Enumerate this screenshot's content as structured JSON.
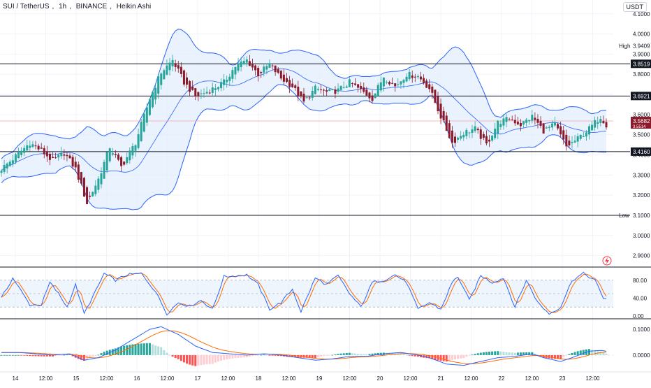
{
  "title": {
    "symbol": "SUI / TetherUS",
    "interval": "1h",
    "exchange": "BINANCE",
    "style": "Heikin Ashi"
  },
  "currency_button": "USDT",
  "colors": {
    "up": "#26a69a",
    "down": "#8b1a2b",
    "band": "#2962ff",
    "band_fill": "#e3effc",
    "stoch_k": "#2962ff",
    "stoch_d": "#ff6d00",
    "macd_line": "#2962ff",
    "signal_line": "#ff6d00",
    "hist_up_strong": "#26a69a",
    "hist_up_weak": "#b2dfdb",
    "hist_down_strong": "#ff5252",
    "hist_down_weak": "#ffcdd2",
    "current_price_bg": "#8b1a2b",
    "level_bg": "#131722"
  },
  "price_axis": {
    "ticks": [
      "4.1000",
      "4.0000",
      "3.9000",
      "3.8000",
      "3.7000",
      "3.6000",
      "3.5000",
      "3.4000",
      "3.3000",
      "3.2000",
      "3.1000",
      "3.0000",
      "2.9000"
    ]
  },
  "levels": [
    {
      "label": "",
      "value": "3.8519",
      "price": 3.8519
    },
    {
      "label": "",
      "value": "3.6921",
      "price": 3.6921
    },
    {
      "label": "",
      "value": "3.4160",
      "price": 3.416
    },
    {
      "label": "Low",
      "value": "3.1000",
      "price": 3.1
    }
  ],
  "high_marker": {
    "label": "High",
    "value": "3.9409",
    "price": 3.9409
  },
  "current_price": {
    "value": "3.5682",
    "sub": "3.5514",
    "price": 3.5682
  },
  "time_axis": [
    "14",
    "12:00",
    "15",
    "12:00",
    "16",
    "12:00",
    "17",
    "12:00",
    "18",
    "12:00",
    "19",
    "12:00",
    "20",
    "12:00",
    "21",
    "12:00",
    "22",
    "12:00",
    "23",
    "12:00"
  ],
  "stoch_axis": [
    "80.00",
    "40.00",
    "0.00"
  ],
  "macd_axis": [
    "0.1000",
    "0.0000"
  ],
  "chart_data": {
    "type": "candlestick",
    "price_range": [
      2.85,
      4.12
    ],
    "anchors": [
      [
        0,
        3.33
      ],
      [
        4,
        3.38
      ],
      [
        10,
        3.46
      ],
      [
        14,
        3.42
      ],
      [
        18,
        3.37
      ],
      [
        22,
        3.41
      ],
      [
        26,
        3.33
      ],
      [
        30,
        3.16
      ],
      [
        34,
        3.28
      ],
      [
        38,
        3.44
      ],
      [
        42,
        3.34
      ],
      [
        47,
        3.46
      ],
      [
        52,
        3.68
      ],
      [
        56,
        3.81
      ],
      [
        60,
        3.87
      ],
      [
        64,
        3.76
      ],
      [
        68,
        3.69
      ],
      [
        73,
        3.72
      ],
      [
        78,
        3.76
      ],
      [
        82,
        3.84
      ],
      [
        86,
        3.87
      ],
      [
        90,
        3.8
      ],
      [
        94,
        3.85
      ],
      [
        98,
        3.78
      ],
      [
        102,
        3.74
      ],
      [
        106,
        3.66
      ],
      [
        110,
        3.73
      ],
      [
        114,
        3.71
      ],
      [
        118,
        3.72
      ],
      [
        122,
        3.76
      ],
      [
        126,
        3.72
      ],
      [
        130,
        3.68
      ],
      [
        134,
        3.79
      ],
      [
        138,
        3.74
      ],
      [
        142,
        3.8
      ],
      [
        146,
        3.79
      ],
      [
        150,
        3.73
      ],
      [
        154,
        3.59
      ],
      [
        158,
        3.46
      ],
      [
        162,
        3.51
      ],
      [
        166,
        3.53
      ],
      [
        170,
        3.45
      ],
      [
        174,
        3.56
      ],
      [
        178,
        3.58
      ],
      [
        182,
        3.55
      ],
      [
        186,
        3.59
      ],
      [
        190,
        3.52
      ],
      [
        194,
        3.55
      ],
      [
        198,
        3.44
      ],
      [
        202,
        3.48
      ],
      [
        206,
        3.53
      ],
      [
        210,
        3.59
      ],
      [
        212,
        3.55
      ]
    ],
    "stoch_range": [
      0,
      100
    ],
    "stoch_anchors": [
      [
        0,
        40
      ],
      [
        4,
        85
      ],
      [
        7,
        55
      ],
      [
        10,
        25
      ],
      [
        14,
        25
      ],
      [
        17,
        75
      ],
      [
        20,
        50
      ],
      [
        23,
        20
      ],
      [
        26,
        70
      ],
      [
        29,
        5
      ],
      [
        33,
        55
      ],
      [
        36,
        95
      ],
      [
        40,
        80
      ],
      [
        44,
        92
      ],
      [
        49,
        95
      ],
      [
        54,
        55
      ],
      [
        58,
        5
      ],
      [
        62,
        30
      ],
      [
        66,
        22
      ],
      [
        70,
        35
      ],
      [
        74,
        15
      ],
      [
        78,
        88
      ],
      [
        82,
        90
      ],
      [
        86,
        92
      ],
      [
        90,
        70
      ],
      [
        94,
        15
      ],
      [
        98,
        30
      ],
      [
        102,
        60
      ],
      [
        105,
        10
      ],
      [
        110,
        85
      ],
      [
        114,
        70
      ],
      [
        118,
        90
      ],
      [
        122,
        50
      ],
      [
        126,
        20
      ],
      [
        130,
        75
      ],
      [
        134,
        80
      ],
      [
        138,
        92
      ],
      [
        142,
        75
      ],
      [
        146,
        15
      ],
      [
        150,
        30
      ],
      [
        154,
        15
      ],
      [
        158,
        75
      ],
      [
        160,
        88
      ],
      [
        164,
        35
      ],
      [
        168,
        90
      ],
      [
        172,
        75
      ],
      [
        176,
        85
      ],
      [
        180,
        20
      ],
      [
        184,
        80
      ],
      [
        188,
        30
      ],
      [
        192,
        5
      ],
      [
        196,
        20
      ],
      [
        200,
        80
      ],
      [
        204,
        95
      ],
      [
        208,
        80
      ],
      [
        211,
        40
      ]
    ],
    "macd_range": [
      -0.06,
      0.13
    ],
    "macd_anchors": [
      [
        0,
        0.01
      ],
      [
        6,
        0.01
      ],
      [
        12,
        0.005
      ],
      [
        18,
        0.0
      ],
      [
        24,
        0.005
      ],
      [
        29,
        -0.02
      ],
      [
        34,
        -0.01
      ],
      [
        40,
        0.02
      ],
      [
        46,
        0.06
      ],
      [
        52,
        0.1
      ],
      [
        56,
        0.11
      ],
      [
        62,
        0.08
      ],
      [
        68,
        0.035
      ],
      [
        74,
        0.01
      ],
      [
        80,
        0.005
      ],
      [
        86,
        0.0
      ],
      [
        92,
        0.005
      ],
      [
        98,
        0.0
      ],
      [
        104,
        -0.01
      ],
      [
        110,
        -0.02
      ],
      [
        116,
        -0.015
      ],
      [
        122,
        -0.005
      ],
      [
        128,
        -0.005
      ],
      [
        134,
        0.005
      ],
      [
        140,
        0.01
      ],
      [
        146,
        0.0
      ],
      [
        150,
        -0.01
      ],
      [
        156,
        -0.035
      ],
      [
        162,
        -0.04
      ],
      [
        168,
        -0.025
      ],
      [
        174,
        -0.01
      ],
      [
        180,
        -0.005
      ],
      [
        186,
        0.005
      ],
      [
        190,
        -0.01
      ],
      [
        196,
        -0.025
      ],
      [
        200,
        -0.01
      ],
      [
        206,
        0.015
      ],
      [
        210,
        0.018
      ],
      [
        212,
        0.015
      ]
    ]
  }
}
